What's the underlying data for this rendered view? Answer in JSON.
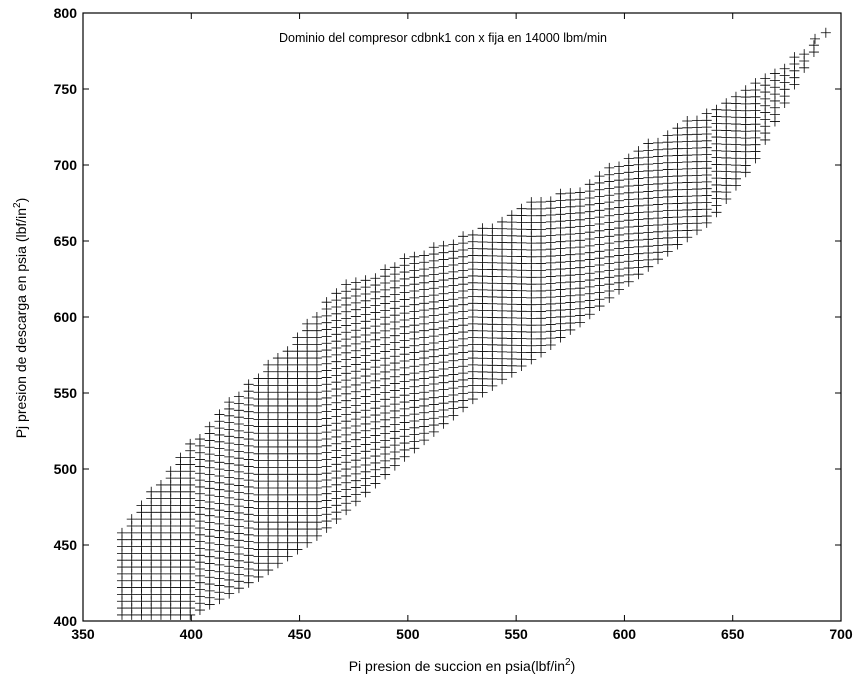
{
  "chart_data": {
    "type": "scatter",
    "marker": "+",
    "title": "Dominio del compresor cdbnk1 con x fija en 14000 lbm/min",
    "xlabel_main": "Pi presion de succion en psia(lbf/in",
    "xlabel_sup": "2",
    "xlabel_end": ")",
    "ylabel_main": "Pj presion de descarga en psia (lbf/in",
    "ylabel_sup": "2",
    "ylabel_end": ")",
    "xlim": [
      350,
      700
    ],
    "ylim": [
      400,
      800
    ],
    "xticks": [
      350,
      400,
      450,
      500,
      550,
      600,
      650,
      700
    ],
    "yticks": [
      400,
      450,
      500,
      550,
      600,
      650,
      700,
      750,
      800
    ],
    "grid": false,
    "x_step": 4.5,
    "y_step": 4.5,
    "domain_upper_boundary": [
      [
        368,
        462
      ],
      [
        400,
        518
      ],
      [
        420,
        548
      ],
      [
        440,
        575
      ],
      [
        460,
        606
      ],
      [
        465,
        618
      ],
      [
        480,
        626
      ],
      [
        500,
        640
      ],
      [
        520,
        650
      ],
      [
        540,
        662
      ],
      [
        560,
        678
      ],
      [
        580,
        686
      ],
      [
        600,
        705
      ],
      [
        620,
        722
      ],
      [
        640,
        738
      ],
      [
        660,
        754
      ],
      [
        680,
        773
      ],
      [
        693,
        787
      ]
    ],
    "domain_lower_boundary": [
      [
        368,
        404
      ],
      [
        400,
        404
      ],
      [
        430,
        428
      ],
      [
        460,
        458
      ],
      [
        500,
        510
      ],
      [
        530,
        546
      ],
      [
        560,
        575
      ],
      [
        580,
        597
      ],
      [
        600,
        621
      ],
      [
        620,
        643
      ],
      [
        640,
        664
      ],
      [
        660,
        703
      ],
      [
        680,
        757
      ],
      [
        693,
        787
      ]
    ]
  }
}
